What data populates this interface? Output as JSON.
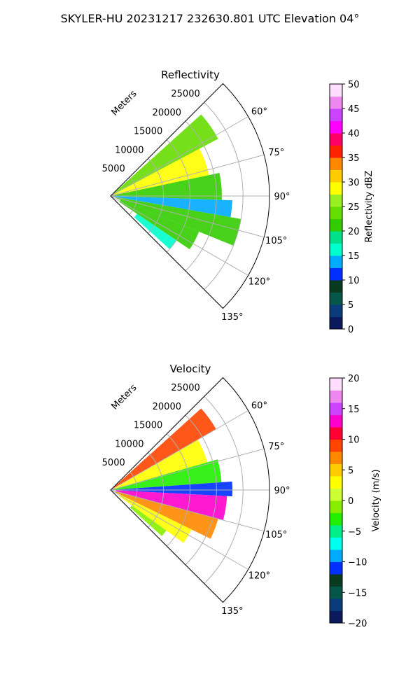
{
  "figure": {
    "title": "SKYLER-HU  20231217  232630.801 UTC Elevation 04°"
  },
  "chart_data": [
    {
      "type": "heatmap",
      "projection": "polar-sector",
      "title": "Reflectivity",
      "range_label": "Meters",
      "range_ticks": [
        "5000",
        "10000",
        "15000",
        "20000",
        "25000"
      ],
      "range_tick_values": [
        5000,
        10000,
        15000,
        20000,
        25000
      ],
      "range_max": 30000,
      "azimuth_ticks": [
        "60°",
        "75°",
        "90°",
        "105°",
        "120°",
        "135°"
      ],
      "azimuth_tick_values": [
        60,
        75,
        90,
        105,
        120,
        135
      ],
      "azimuth_range": [
        45,
        135
      ],
      "grid": true,
      "colorbar": {
        "label": "Reflectivity dBZ",
        "range": [
          0,
          50
        ],
        "ticks": [
          "0",
          "5",
          "10",
          "15",
          "20",
          "25",
          "30",
          "35",
          "40",
          "45",
          "50"
        ],
        "tick_values": [
          0,
          5,
          10,
          15,
          20,
          25,
          30,
          35,
          40,
          45,
          50
        ],
        "colors": [
          "#0a1a5c",
          "#0b3b7a",
          "#06564a",
          "#0a3a20",
          "#0030ff",
          "#00aaff",
          "#00ffcc",
          "#00e08a",
          "#33cc00",
          "#66dd00",
          "#99ee22",
          "#ffff00",
          "#ffcc00",
          "#ff8800",
          "#ff2200",
          "#ff0066",
          "#ff00ff",
          "#cc44ff",
          "#ee88ee",
          "#ffddff"
        ]
      },
      "echo_sectors": [
        {
          "az_start": 48,
          "az_end": 62,
          "r_start": 500,
          "r_end": 23000,
          "value": 24
        },
        {
          "az_start": 62,
          "az_end": 78,
          "r_start": 500,
          "r_end": 19000,
          "value": 28
        },
        {
          "az_start": 78,
          "az_end": 92,
          "r_start": 500,
          "r_end": 21000,
          "value": 22
        },
        {
          "az_start": 92,
          "az_end": 100,
          "r_start": 500,
          "r_end": 23000,
          "value": 14
        },
        {
          "az_start": 100,
          "az_end": 112,
          "r_start": 1000,
          "r_end": 25000,
          "value": 22
        },
        {
          "az_start": 112,
          "az_end": 124,
          "r_start": 2000,
          "r_end": 18000,
          "value": 20
        },
        {
          "az_start": 124,
          "az_end": 132,
          "r_start": 6000,
          "r_end": 15000,
          "value": 17
        }
      ]
    },
    {
      "type": "heatmap",
      "projection": "polar-sector",
      "title": "Velocity",
      "range_label": "Meters",
      "range_ticks": [
        "5000",
        "10000",
        "15000",
        "20000",
        "25000"
      ],
      "range_tick_values": [
        5000,
        10000,
        15000,
        20000,
        25000
      ],
      "range_max": 30000,
      "azimuth_ticks": [
        "60°",
        "75°",
        "90°",
        "105°",
        "120°",
        "135°"
      ],
      "azimuth_tick_values": [
        60,
        75,
        90,
        105,
        120,
        135
      ],
      "azimuth_range": [
        45,
        135
      ],
      "grid": true,
      "colorbar": {
        "label": "Velocity (m/s)",
        "range": [
          -20,
          20
        ],
        "ticks": [
          "−20",
          "−15",
          "−10",
          "−5",
          "0",
          "5",
          "10",
          "15",
          "20"
        ],
        "tick_values": [
          -20,
          -15,
          -10,
          -5,
          0,
          5,
          10,
          15,
          20
        ],
        "colors": [
          "#0a1a5c",
          "#0b3b7a",
          "#06564a",
          "#0a3a20",
          "#0030ff",
          "#00aaff",
          "#00ffee",
          "#00ee88",
          "#22ee00",
          "#88ee00",
          "#ccff33",
          "#ffff00",
          "#ffcc00",
          "#ff8800",
          "#ff4400",
          "#ff0033",
          "#ff00cc",
          "#cc44ff",
          "#ee88ee",
          "#ffddff"
        ]
      },
      "echo_sectors": [
        {
          "az_start": 48,
          "az_end": 60,
          "r_start": 500,
          "r_end": 23000,
          "value": 9
        },
        {
          "az_start": 60,
          "az_end": 74,
          "r_start": 500,
          "r_end": 19000,
          "value": 2
        },
        {
          "az_start": 74,
          "az_end": 86,
          "r_start": 500,
          "r_end": 21000,
          "value": -3
        },
        {
          "az_start": 86,
          "az_end": 93,
          "r_start": 500,
          "r_end": 23000,
          "value": -11
        },
        {
          "az_start": 93,
          "az_end": 105,
          "r_start": 1000,
          "r_end": 22000,
          "value": 13
        },
        {
          "az_start": 105,
          "az_end": 116,
          "r_start": 1000,
          "r_end": 21000,
          "value": 6
        },
        {
          "az_start": 116,
          "az_end": 126,
          "r_start": 2000,
          "r_end": 17000,
          "value": 2
        },
        {
          "az_start": 126,
          "az_end": 132,
          "r_start": 5000,
          "r_end": 13000,
          "value": -2
        }
      ]
    }
  ]
}
